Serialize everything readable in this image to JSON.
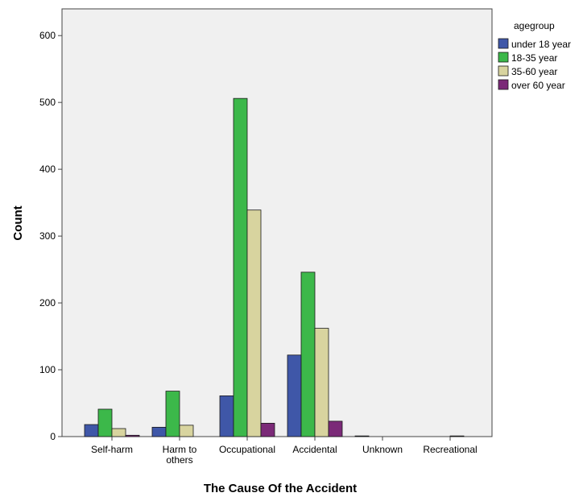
{
  "chart_data": {
    "type": "bar",
    "xlabel": "The Cause Of the Accident",
    "ylabel": "Count",
    "ylim": [
      0,
      640
    ],
    "yticks": [
      0,
      100,
      200,
      300,
      400,
      500,
      600
    ],
    "categories": [
      "Self-harm",
      "Harm to\nothers",
      "Occupational",
      "Accidental",
      "Unknown",
      "Recreational"
    ],
    "legend_title": "agegroup",
    "legend_position": "right",
    "series": [
      {
        "name": "under 18 year",
        "color": "#3f57a8",
        "values": [
          18,
          14,
          61,
          122,
          1,
          0
        ]
      },
      {
        "name": "18-35 year",
        "color": "#3cb84a",
        "values": [
          41,
          68,
          506,
          246,
          0,
          0
        ]
      },
      {
        "name": "35-60 year",
        "color": "#d8d49f",
        "values": [
          12,
          17,
          339,
          162,
          0,
          1
        ]
      },
      {
        "name": "over 60 year",
        "color": "#7b2a78",
        "values": [
          2,
          0,
          20,
          23,
          0,
          0
        ]
      }
    ]
  }
}
